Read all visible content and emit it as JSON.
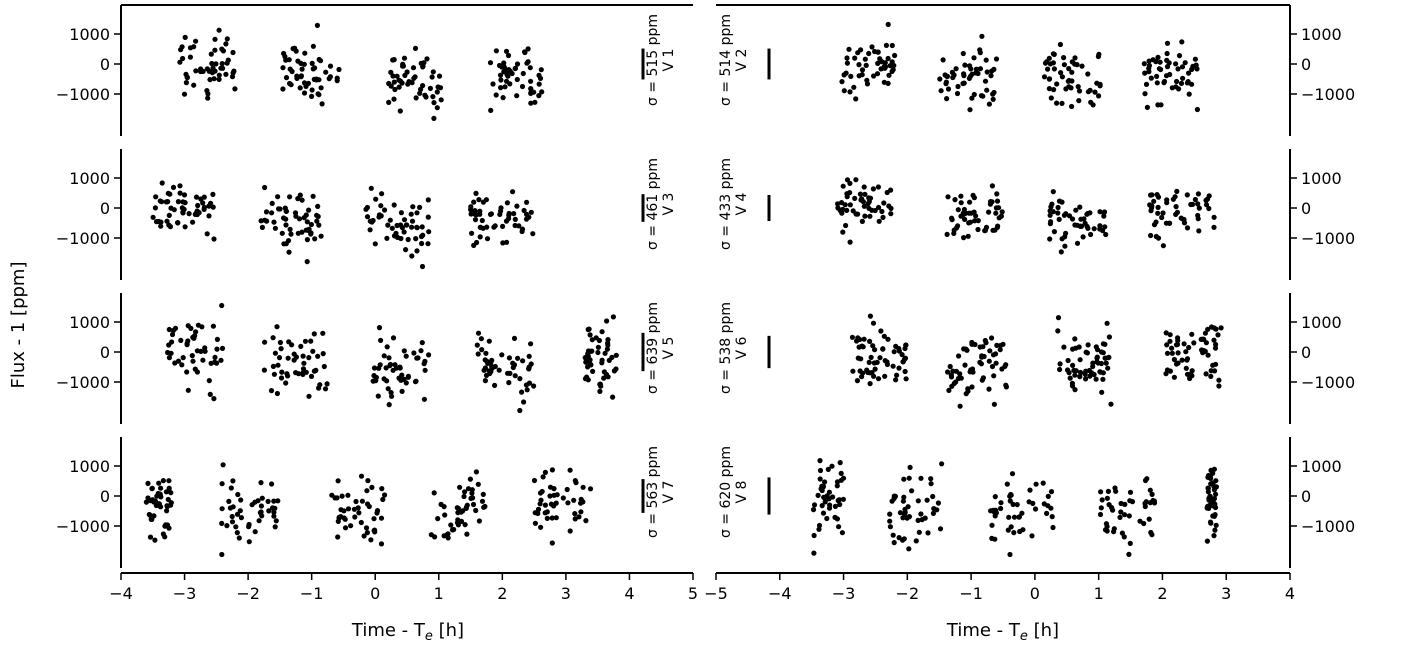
{
  "figure": {
    "ylabel": "Flux - 1 [ppm]",
    "left_xlabel": "Time - T",
    "left_xlabel_sub": "e",
    "left_xlabel_unit": " [h]",
    "right_xlabel": "Time - T",
    "right_xlabel_sub": "e",
    "right_xlabel_unit": " [h]",
    "left_xticks": [
      "−4",
      "−3",
      "−2",
      "−1",
      "0",
      "1",
      "2",
      "3",
      "4",
      "5"
    ],
    "right_xticks": [
      "−5",
      "−4",
      "−3",
      "−2",
      "−1",
      "0",
      "1",
      "2",
      "3",
      "4"
    ],
    "yticks": [
      "1000",
      "0",
      "−1000"
    ]
  },
  "chart_data": [
    {
      "type": "scatter",
      "panel": "V 1",
      "sigma_text": "σ = 515 ppm",
      "sigma_ppm": 515,
      "column": "left",
      "row": 0,
      "xlim": [
        -4,
        5
      ],
      "ylim": [
        -2400,
        2000
      ],
      "yticks": [
        1000,
        0,
        -1000
      ],
      "point_count": 210,
      "seed": 101,
      "x_ranges": [
        [
          -3.1,
          -2.2
        ],
        [
          -1.5,
          -0.55
        ],
        [
          0.2,
          1.05
        ],
        [
          1.8,
          2.65
        ]
      ],
      "clusters_y_bias": [
        0,
        -250,
        -550,
        -350
      ],
      "slopes": [
        0,
        -400,
        0,
        0
      ]
    },
    {
      "type": "scatter",
      "panel": "V 2",
      "sigma_text": "σ = 514 ppm",
      "sigma_ppm": 514,
      "column": "right",
      "row": 0,
      "xlim": [
        -5,
        4
      ],
      "ylim": [
        -2400,
        2000
      ],
      "yticks": [
        1000,
        0,
        -1000
      ],
      "point_count": 210,
      "seed": 102,
      "x_ranges": [
        [
          -3.05,
          -2.2
        ],
        [
          -1.5,
          -0.6
        ],
        [
          0.15,
          1.05
        ],
        [
          1.7,
          2.55
        ]
      ],
      "clusters_y_bias": [
        0,
        -450,
        -500,
        -300
      ],
      "slopes": [
        0,
        0,
        0,
        0
      ]
    },
    {
      "type": "scatter",
      "panel": "V 3",
      "sigma_text": "σ = 461 ppm",
      "sigma_ppm": 461,
      "column": "left",
      "row": 1,
      "xlim": [
        -4,
        5
      ],
      "ylim": [
        -2400,
        2000
      ],
      "yticks": [
        1000,
        0,
        -1000
      ],
      "point_count": 220,
      "seed": 103,
      "x_ranges": [
        [
          -3.5,
          -2.5
        ],
        [
          -1.8,
          -0.85
        ],
        [
          -0.15,
          0.85
        ],
        [
          1.5,
          2.5
        ]
      ],
      "clusters_y_bias": [
        -100,
        -300,
        -500,
        -400
      ],
      "slopes": [
        0,
        0,
        -500,
        0
      ]
    },
    {
      "type": "scatter",
      "panel": "V 4",
      "sigma_text": "σ = 433 ppm",
      "sigma_ppm": 433,
      "column": "right",
      "row": 1,
      "xlim": [
        -5,
        4
      ],
      "ylim": [
        -2400,
        2000
      ],
      "yticks": [
        1000,
        0,
        -1000
      ],
      "point_count": 210,
      "seed": 104,
      "x_ranges": [
        [
          -3.1,
          -2.25
        ],
        [
          -1.45,
          -0.5
        ],
        [
          0.2,
          1.15
        ],
        [
          1.8,
          2.85
        ]
      ],
      "clusters_y_bias": [
        0,
        -350,
        -450,
        -150
      ],
      "slopes": [
        0,
        0,
        0,
        0
      ]
    },
    {
      "type": "scatter",
      "panel": "V 5",
      "sigma_text": "σ = 639 ppm",
      "sigma_ppm": 639,
      "column": "left",
      "row": 2,
      "xlim": [
        -4,
        5
      ],
      "ylim": [
        -2400,
        2000
      ],
      "yticks": [
        1000,
        0,
        -1000
      ],
      "point_count": 250,
      "seed": 105,
      "x_ranges": [
        [
          -3.3,
          -2.35
        ],
        [
          -1.75,
          -0.75
        ],
        [
          -0.05,
          0.85
        ],
        [
          1.6,
          2.5
        ],
        [
          3.3,
          3.8
        ]
      ],
      "clusters_y_bias": [
        -150,
        -300,
        -450,
        -350,
        -200
      ],
      "slopes": [
        0,
        0,
        0,
        0,
        0
      ]
    },
    {
      "type": "scatter",
      "panel": "V 6",
      "sigma_text": "σ = 538 ppm",
      "sigma_ppm": 538,
      "column": "right",
      "row": 2,
      "xlim": [
        -5,
        4
      ],
      "ylim": [
        -2400,
        2000
      ],
      "yticks": [
        1000,
        0,
        -1000
      ],
      "point_count": 240,
      "seed": 106,
      "x_ranges": [
        [
          -2.9,
          -2.0
        ],
        [
          -1.4,
          -0.4
        ],
        [
          0.35,
          1.2
        ],
        [
          2.05,
          2.95
        ]
      ],
      "clusters_y_bias": [
        -150,
        -550,
        -300,
        0
      ],
      "slopes": [
        0,
        400,
        0,
        0
      ]
    },
    {
      "type": "scatter",
      "panel": "V 7",
      "sigma_text": "σ = 563 ppm",
      "sigma_ppm": 563,
      "column": "left",
      "row": 3,
      "xlim": [
        -4,
        5
      ],
      "ylim": [
        -2400,
        2000
      ],
      "yticks": [
        1000,
        0,
        -1000
      ],
      "point_count": 230,
      "seed": 107,
      "x_ranges": [
        [
          -3.6,
          -3.2
        ],
        [
          -2.45,
          -1.5
        ],
        [
          -0.75,
          0.15
        ],
        [
          0.85,
          1.75
        ],
        [
          2.5,
          3.4
        ]
      ],
      "clusters_y_bias": [
        -200,
        -450,
        -500,
        -450,
        -50
      ],
      "slopes": [
        800,
        0,
        0,
        500,
        0
      ]
    },
    {
      "type": "scatter",
      "panel": "V 8",
      "sigma_text": "σ = 620 ppm",
      "sigma_ppm": 620,
      "column": "right",
      "row": 3,
      "xlim": [
        -5,
        4
      ],
      "ylim": [
        -2400,
        2000
      ],
      "yticks": [
        1000,
        0,
        -1000
      ],
      "point_count": 230,
      "seed": 108,
      "x_ranges": [
        [
          -3.5,
          -3.0
        ],
        [
          -2.3,
          -1.45
        ],
        [
          -0.7,
          0.3
        ],
        [
          1.0,
          1.9
        ],
        [
          2.7,
          2.85
        ]
      ],
      "clusters_y_bias": [
        -150,
        -350,
        -550,
        -550,
        -100
      ],
      "slopes": [
        800,
        0,
        0,
        0,
        0
      ]
    }
  ]
}
